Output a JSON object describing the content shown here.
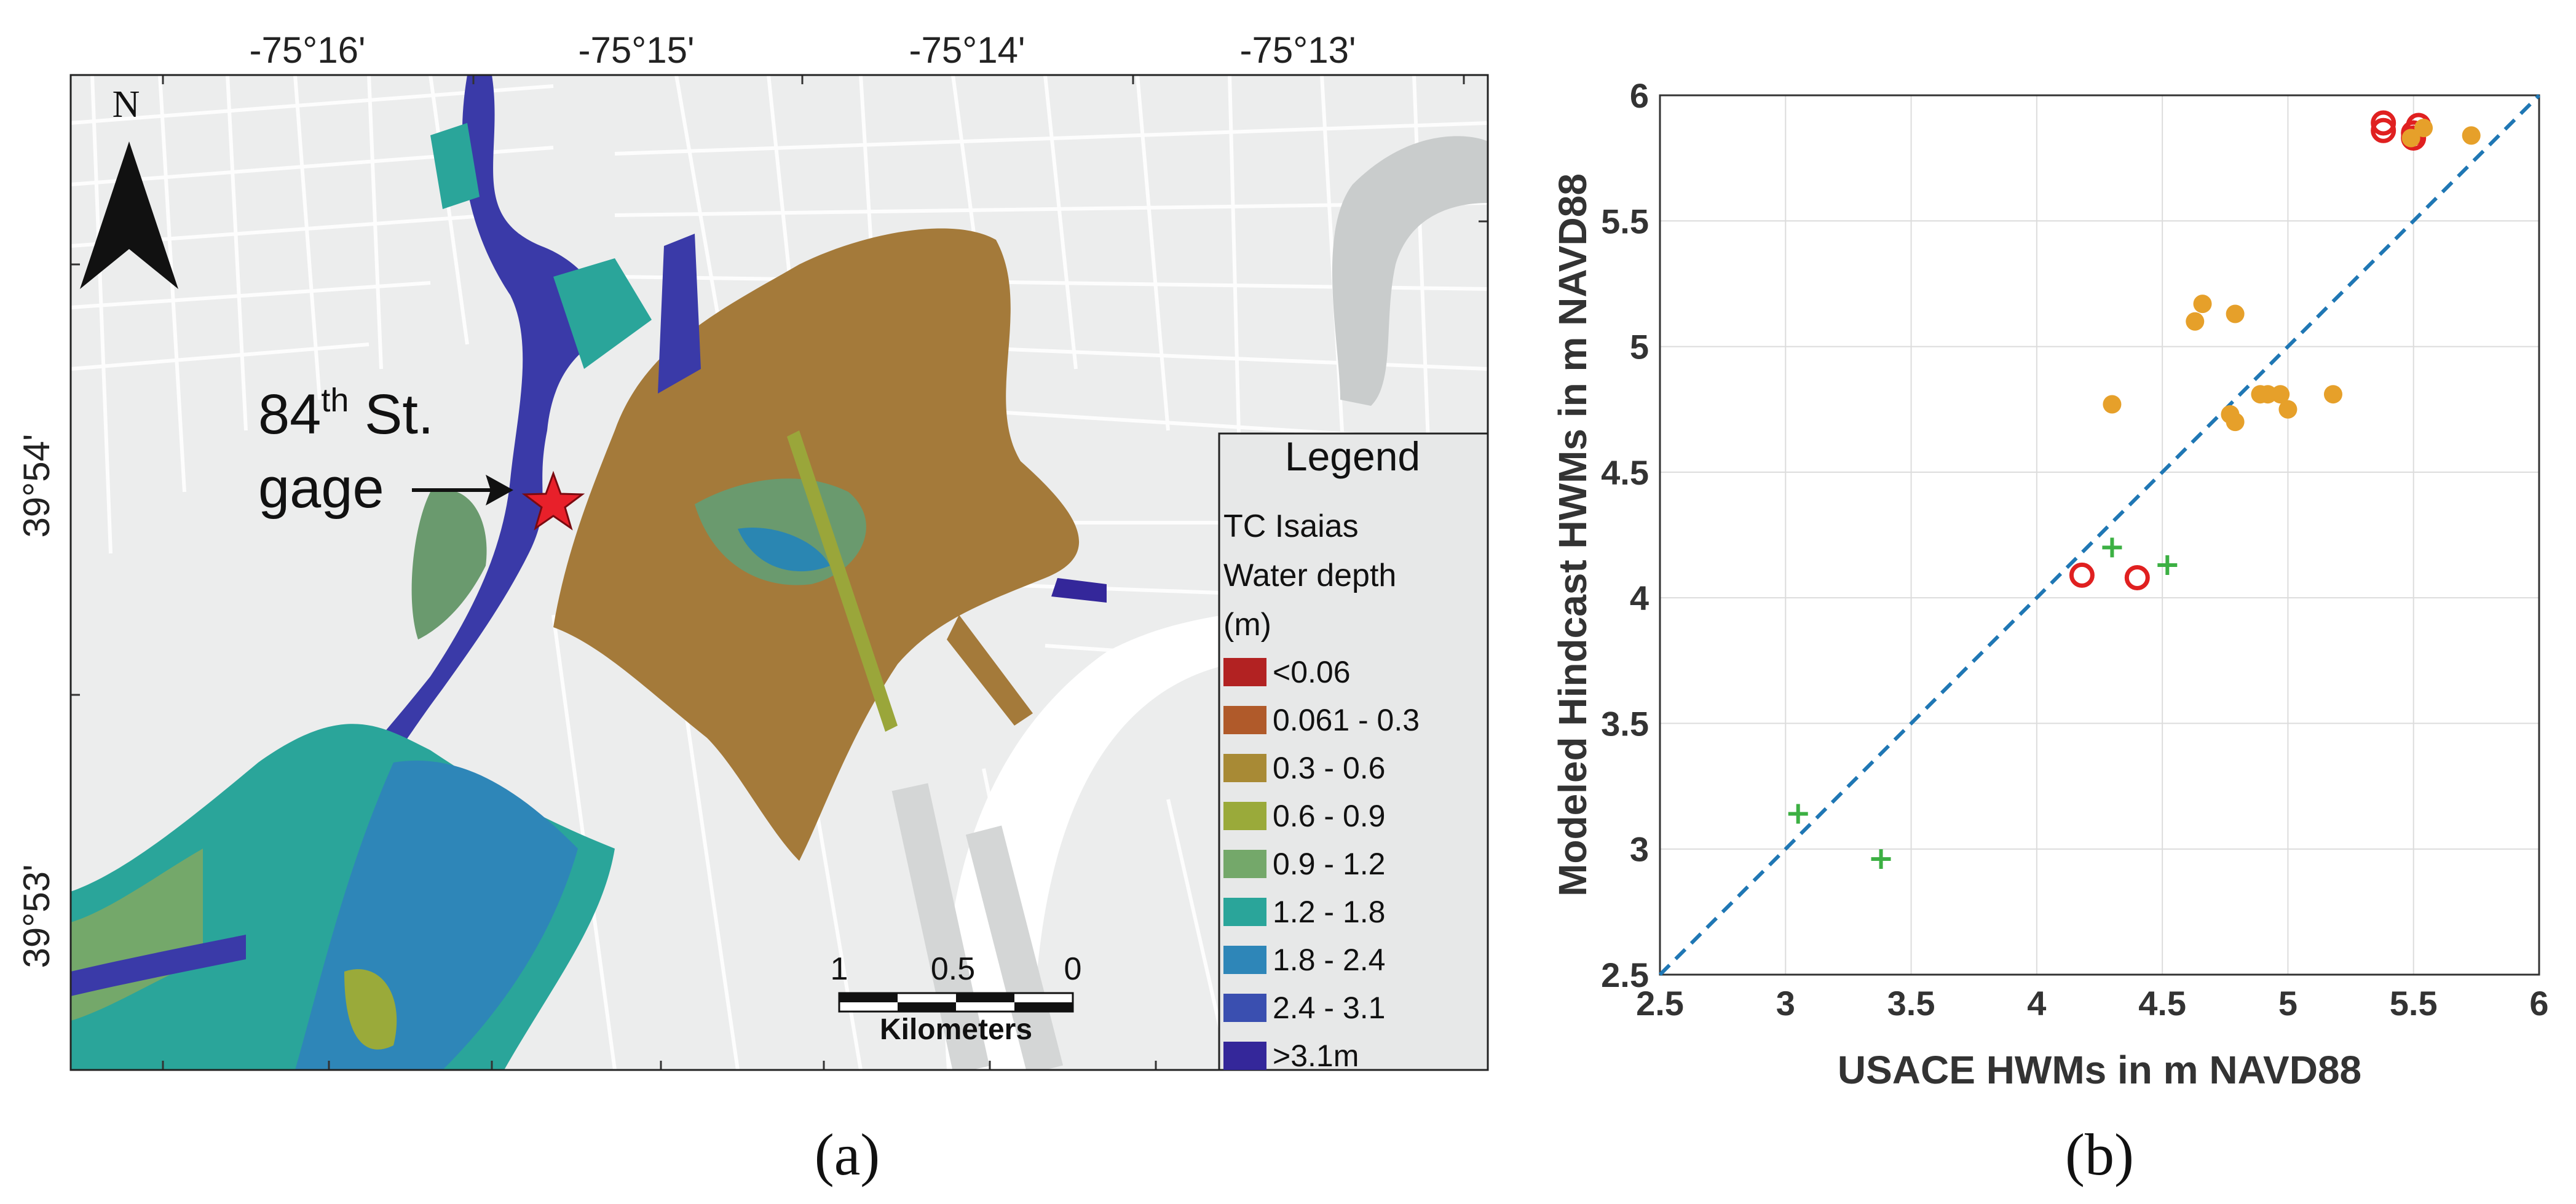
{
  "map": {
    "lon_labels": [
      "-75°16'",
      "-75°15'",
      "-75°14'",
      "-75°13'"
    ],
    "lat_labels": [
      "39°54'",
      "39°53'"
    ],
    "north_label": "N",
    "gage_label_line1": "84",
    "gage_label_sup": "th",
    "gage_label_line1_rest": " St.",
    "gage_label_line2": "gage",
    "scalebar": {
      "ticks": [
        "1",
        "0.5",
        "0"
      ],
      "unit": "Kilometers"
    },
    "legend": {
      "title": "Legend",
      "subtitle_lines": [
        "TC Isaias",
        "Water depth",
        "(m)"
      ],
      "items": [
        {
          "label": "<0.06",
          "color": "#b22222"
        },
        {
          "label": "0.061 - 0.3",
          "color": "#b05a2a"
        },
        {
          "label": "0.3 - 0.6",
          "color": "#a88a35"
        },
        {
          "label": "0.6 - 0.9",
          "color": "#9aaa3a"
        },
        {
          "label": "0.9 - 1.2",
          "color": "#74a86a"
        },
        {
          "label": "1.2 - 1.8",
          "color": "#2aa59a"
        },
        {
          "label": "1.8 - 2.4",
          "color": "#2e86b8"
        },
        {
          "label": "2.4 - 3.1",
          "color": "#3a4fb0"
        },
        {
          "label": ">3.1m",
          "color": "#34279a"
        }
      ]
    },
    "panel_label": "(a)"
  },
  "chart_data": {
    "type": "scatter",
    "title": "",
    "xlabel": "USACE HWMs in m NAVD88",
    "ylabel": "Modeled Hindcast HWMs in m NAVD88",
    "xlim": [
      2.5,
      6
    ],
    "ylim": [
      2.5,
      6
    ],
    "xticks": [
      2.5,
      3,
      3.5,
      4,
      4.5,
      5,
      5.5,
      6
    ],
    "yticks": [
      2.5,
      3,
      3.5,
      4,
      4.5,
      5,
      5.5,
      6
    ],
    "grid": true,
    "reference_line": {
      "style": "dashed",
      "color": "#1f77b4",
      "from": [
        2.5,
        2.5
      ],
      "to": [
        6,
        6
      ]
    },
    "series": [
      {
        "name": "green-plus",
        "marker": "plus",
        "color": "#3cb043",
        "points": [
          [
            3.05,
            3.14
          ],
          [
            3.38,
            2.96
          ],
          [
            4.3,
            4.2
          ],
          [
            4.52,
            4.13
          ]
        ]
      },
      {
        "name": "red-circle",
        "marker": "open-circle",
        "color": "#e02020",
        "points": [
          [
            4.18,
            4.09
          ],
          [
            4.4,
            4.08
          ],
          [
            5.38,
            5.86
          ],
          [
            5.38,
            5.89
          ],
          [
            5.5,
            5.85
          ],
          [
            5.52,
            5.88
          ],
          [
            5.5,
            5.83
          ]
        ]
      },
      {
        "name": "orange-dot",
        "marker": "filled-circle",
        "color": "#e6a02a",
        "points": [
          [
            4.3,
            4.77
          ],
          [
            4.63,
            5.1
          ],
          [
            4.66,
            5.17
          ],
          [
            4.79,
            5.13
          ],
          [
            4.77,
            4.73
          ],
          [
            4.79,
            4.7
          ],
          [
            4.89,
            4.81
          ],
          [
            4.92,
            4.81
          ],
          [
            4.97,
            4.81
          ],
          [
            5.0,
            4.75
          ],
          [
            5.18,
            4.81
          ],
          [
            5.49,
            5.83
          ],
          [
            5.54,
            5.87
          ],
          [
            5.73,
            5.84
          ]
        ]
      }
    ],
    "panel_label": "(b)"
  }
}
